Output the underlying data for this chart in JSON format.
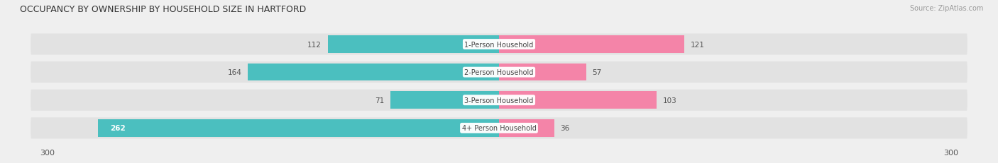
{
  "title": "OCCUPANCY BY OWNERSHIP BY HOUSEHOLD SIZE IN HARTFORD",
  "source": "Source: ZipAtlas.com",
  "categories": [
    "1-Person Household",
    "2-Person Household",
    "3-Person Household",
    "4+ Person Household"
  ],
  "owner_values": [
    112,
    164,
    71,
    262
  ],
  "renter_values": [
    121,
    57,
    103,
    36
  ],
  "owner_color": "#4BBFBF",
  "renter_color": "#F484A8",
  "axis_max": 300,
  "background_color": "#efefef",
  "row_bg_color": "#e2e2e2",
  "label_color": "#555555",
  "title_color": "#333333",
  "source_color": "#999999"
}
